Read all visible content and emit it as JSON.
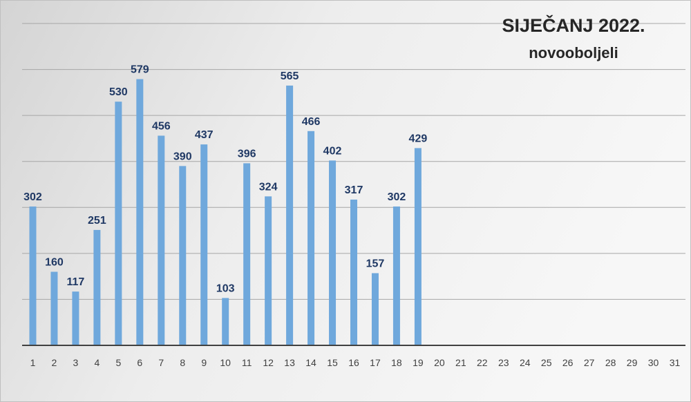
{
  "chart_data": {
    "type": "bar",
    "title": "SIJEČANJ 2022.",
    "subtitle": "novooboljeli",
    "categories": [
      "1",
      "2",
      "3",
      "4",
      "5",
      "6",
      "7",
      "8",
      "9",
      "10",
      "11",
      "12",
      "13",
      "14",
      "15",
      "16",
      "17",
      "18",
      "19",
      "20",
      "21",
      "22",
      "23",
      "24",
      "25",
      "26",
      "27",
      "28",
      "29",
      "30",
      "31"
    ],
    "values": [
      302,
      160,
      117,
      251,
      530,
      579,
      456,
      390,
      437,
      103,
      396,
      324,
      565,
      466,
      402,
      317,
      157,
      302,
      429,
      null,
      null,
      null,
      null,
      null,
      null,
      null,
      null,
      null,
      null,
      null,
      null
    ],
    "ylim": [
      0,
      700
    ],
    "grid": true,
    "legend": false,
    "bar_color": "#6fa8dc",
    "label_color": "#1f3864",
    "background_gradient": [
      "#f2f2f2",
      "#d6d6d6"
    ]
  }
}
